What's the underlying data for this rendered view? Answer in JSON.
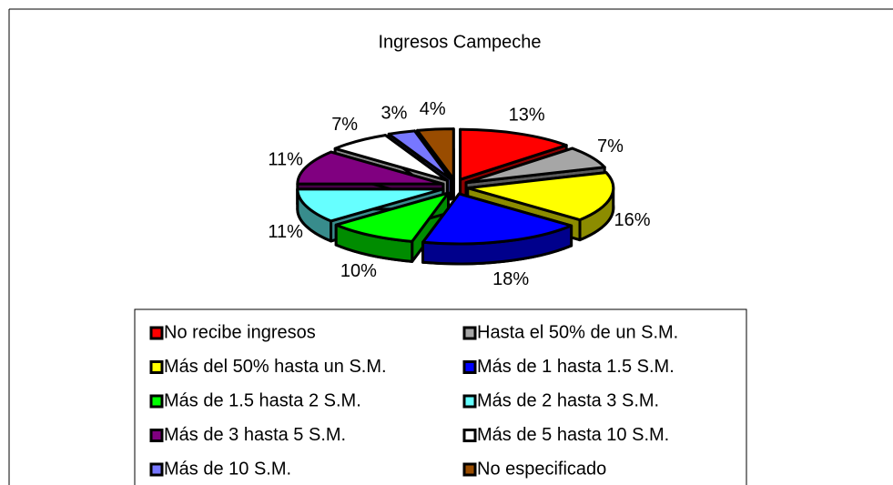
{
  "chart_data": {
    "type": "pie",
    "title": "Ingresos Campeche",
    "categories": [
      "No recibe ingresos",
      "Hasta el 50% de un S.M.",
      "Más del 50% hasta un S.M.",
      "Más de 1 hasta 1.5 S.M.",
      "Más de 1.5 hasta 2 S.M.",
      "Más de 2 hasta 3 S.M.",
      "Más de 3 hasta 5 S.M.",
      "Más de 5 hasta 10 S.M.",
      "Más de 10 S.M.",
      "No especificado"
    ],
    "values": [
      13,
      7,
      16,
      18,
      10,
      11,
      11,
      7,
      3,
      4
    ],
    "value_labels": [
      "13%",
      "7%",
      "16%",
      "18%",
      "10%",
      "11%",
      "11%",
      "7%",
      "3%",
      "4%"
    ],
    "colors": [
      "#ff0000",
      "#a6a6a6",
      "#ffff00",
      "#0000ff",
      "#00ff00",
      "#66ffff",
      "#800080",
      "#ffffff",
      "#7777ff",
      "#994c00"
    ],
    "legend": "bottom"
  }
}
